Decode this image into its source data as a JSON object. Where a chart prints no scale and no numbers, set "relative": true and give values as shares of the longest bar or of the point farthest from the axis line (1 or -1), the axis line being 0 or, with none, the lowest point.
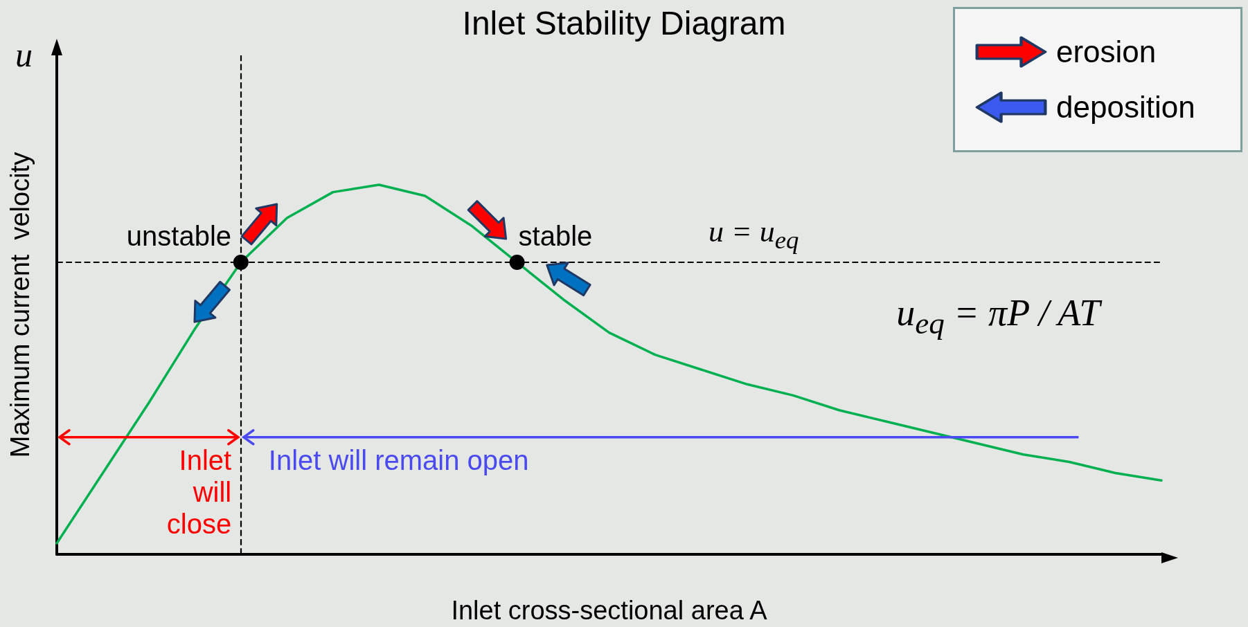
{
  "chart_data": {
    "type": "line",
    "title": "Inlet Stability Diagram",
    "xlabel": "Inlet cross-sectional area A",
    "ylabel": "Maximum current  velocity",
    "relative": true,
    "marker": "none",
    "line_style": "solid",
    "categories": [
      null,
      null,
      null,
      null,
      null,
      null,
      null,
      null,
      null,
      null,
      null,
      null,
      null,
      null,
      null,
      null,
      null,
      null,
      null,
      null,
      null,
      null,
      null,
      null,
      null
    ],
    "series": [
      {
        "color": "#00b050",
        "values": [
          0.03,
          0.22,
          0.41,
          0.61,
          0.79,
          0.91,
          0.98,
          1,
          0.97,
          0.89,
          0.79,
          0.69,
          0.6,
          0.54,
          0.5,
          0.46,
          0.43,
          0.39,
          0.36,
          0.33,
          0.3,
          0.27,
          0.25,
          0.22,
          0.2
        ]
      }
    ],
    "ref_lines": [
      {
        "axis": "y",
        "value": 0.79,
        "label": "u = u$_{eq}$",
        "color": "#000000",
        "line_style": "dashed"
      }
    ],
    "annotations": [
      "u",
      "unstable",
      "stable",
      "u$_{eq}$ = πP / AT",
      "erosion",
      "deposition",
      "Inlet will close",
      "Inlet will remain open"
    ]
  }
}
